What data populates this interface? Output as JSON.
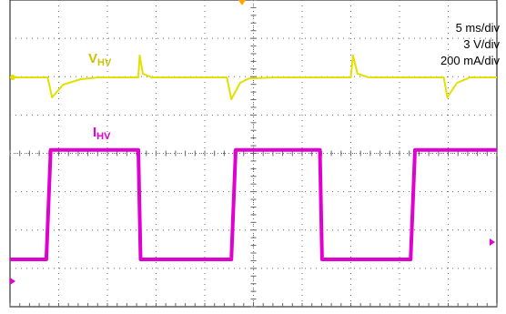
{
  "scale": {
    "time": "5 ms/div",
    "voltage": "3 V/div",
    "current": "200 mA/div"
  },
  "labels": {
    "voltage": {
      "main": "V",
      "sub": "HV",
      "color": "#c9c400"
    },
    "current": {
      "main": "I",
      "sub": "HV",
      "color": "#e600d8"
    }
  },
  "colors": {
    "voltage_trace": "#e3e000",
    "current_trace": "#e000d0",
    "grid": "#666666",
    "frame": "#333333",
    "trigger_marker": "#ffa500",
    "edge_marker": "#e000d0"
  },
  "chart_data": {
    "type": "line",
    "title": "",
    "grid": true,
    "x_unit": "div",
    "series": [
      {
        "name": "V_HV",
        "x": [
          0,
          0.85,
          0.95,
          1.2,
          1.6,
          2.0,
          2.9,
          2.93,
          3.0,
          3.2,
          4.9,
          5.0,
          5.2,
          5.4,
          6.0,
          7.7,
          7.75,
          7.85,
          8.1,
          9.8,
          9.88,
          10.1,
          10.4,
          11.0
        ],
        "y_div": [
          0.0,
          0.0,
          -0.55,
          -0.2,
          -0.05,
          0.0,
          0.0,
          0.6,
          0.1,
          0.0,
          0.0,
          -0.6,
          -0.15,
          -0.03,
          0.0,
          0.0,
          0.6,
          0.1,
          0.0,
          0.0,
          -0.55,
          -0.15,
          0.0,
          0.0
        ]
      },
      {
        "name": "I_HV",
        "x": [
          0,
          0.82,
          0.92,
          2.9,
          2.95,
          5.0,
          5.1,
          7.0,
          7.05,
          9.05,
          9.15,
          11.0
        ],
        "y_div": [
          0.3,
          0.3,
          3.3,
          3.3,
          0.3,
          0.3,
          3.3,
          3.3,
          0.3,
          0.3,
          3.3,
          3.3
        ]
      }
    ]
  }
}
